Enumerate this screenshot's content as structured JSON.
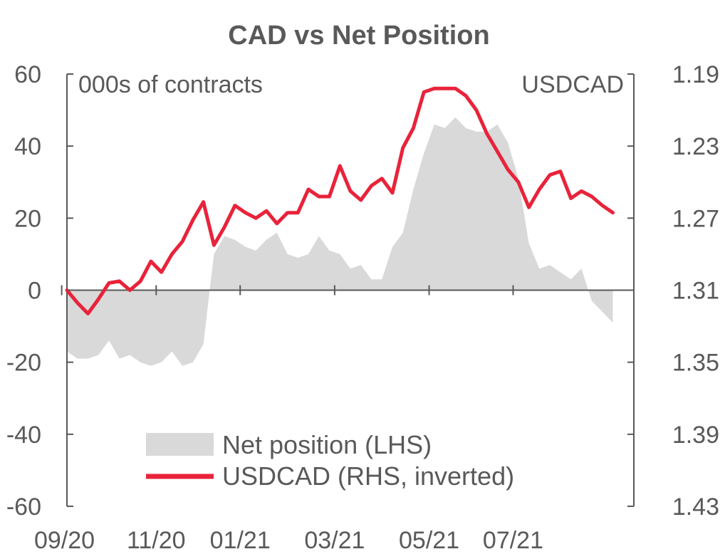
{
  "chart_data": {
    "type": "area+line",
    "title": "CAD vs Net Position",
    "left_axis": {
      "unit_label": "000s of contracts",
      "ylim": [
        -60,
        60
      ],
      "ticks": [
        60,
        40,
        20,
        0,
        -20,
        -40,
        -60
      ],
      "tick_labels": [
        "60",
        "40",
        "20",
        "0",
        "-20",
        "-40",
        "-60"
      ]
    },
    "right_axis": {
      "unit_label": "USDCAD",
      "inverted": true,
      "ylim": [
        1.19,
        1.43
      ],
      "ticks": [
        1.19,
        1.23,
        1.27,
        1.31,
        1.35,
        1.39,
        1.43
      ],
      "tick_labels": [
        "1.19",
        "1.23",
        "1.27",
        "1.31",
        "1.35",
        "1.39",
        "1.43"
      ]
    },
    "x_axis": {
      "tick_labels": [
        "09/20",
        "11/20",
        "01/21",
        "03/21",
        "05/21",
        "07/21"
      ],
      "tick_week_index": [
        0,
        9,
        17,
        26,
        35,
        43
      ],
      "weeks": 55
    },
    "series": [
      {
        "name": "Net position (LHS)",
        "axis": "left",
        "kind": "area",
        "color": "#d9d9d9",
        "values": [
          -17,
          -19,
          -19,
          -18,
          -14,
          -19,
          -18,
          -20,
          -21,
          -20,
          -17,
          -21,
          -20,
          -15,
          10,
          15,
          14,
          12,
          11,
          14,
          16,
          10,
          9,
          10,
          15,
          11,
          10,
          6,
          7,
          3,
          3,
          12,
          16,
          28,
          38,
          46,
          45,
          48,
          45,
          44,
          44,
          46,
          41,
          31,
          13,
          6,
          7,
          5,
          3,
          6,
          -3,
          -6,
          -9
        ]
      },
      {
        "name": "USDCAD (RHS, inverted)",
        "axis": "right",
        "kind": "line",
        "color": "#e8233a",
        "values": [
          1.31,
          1.317,
          1.323,
          1.315,
          1.306,
          1.305,
          1.31,
          1.305,
          1.294,
          1.3,
          1.29,
          1.283,
          1.271,
          1.261,
          1.285,
          1.275,
          1.263,
          1.267,
          1.27,
          1.266,
          1.273,
          1.267,
          1.267,
          1.254,
          1.258,
          1.258,
          1.241,
          1.255,
          1.26,
          1.252,
          1.248,
          1.256,
          1.231,
          1.22,
          1.2,
          1.198,
          1.198,
          1.198,
          1.202,
          1.21,
          1.223,
          1.233,
          1.243,
          1.25,
          1.264,
          1.254,
          1.246,
          1.244,
          1.259,
          1.255,
          1.258,
          1.263,
          1.267
        ]
      }
    ],
    "legend": {
      "placement": "bottom-center",
      "items": [
        "Net position (LHS)",
        "USDCAD (RHS, inverted)"
      ]
    },
    "grid": false
  }
}
